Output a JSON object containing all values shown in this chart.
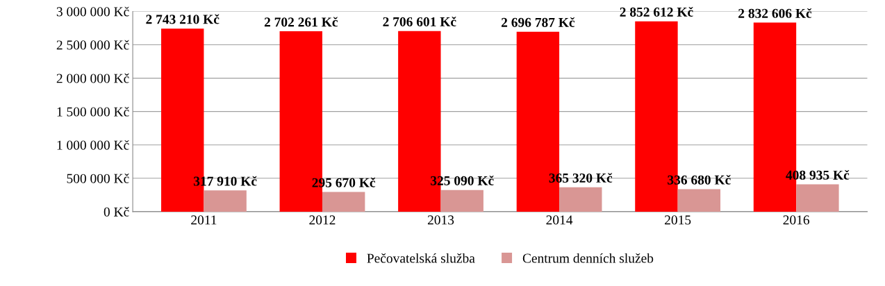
{
  "chart_data": {
    "type": "bar",
    "categories": [
      "2011",
      "2012",
      "2013",
      "2014",
      "2015",
      "2016"
    ],
    "series": [
      {
        "name": "Pečovatelská služba",
        "color": "#ff0000",
        "values": [
          2743210,
          2702261,
          2706601,
          2696787,
          2852612,
          2832606
        ],
        "value_labels": [
          "2 743 210 Kč",
          "2 702 261 Kč",
          "2 706 601 Kč",
          "2 696 787 Kč",
          "2 852 612 Kč",
          "2 832 606 Kč"
        ]
      },
      {
        "name": "Centrum denních služeb",
        "color": "#d99694",
        "values": [
          317910,
          295670,
          325090,
          365320,
          336680,
          408935
        ],
        "value_labels": [
          "317 910 Kč",
          "295 670 Kč",
          "325 090 Kč",
          "365 320 Kč",
          "336 680 Kč",
          "408 935 Kč"
        ]
      }
    ],
    "ylim": [
      0,
      3000000
    ],
    "yticks": [
      {
        "value": 0,
        "label": "0 Kč"
      },
      {
        "value": 500000,
        "label": "500 000 Kč"
      },
      {
        "value": 1000000,
        "label": "1 000 000 Kč"
      },
      {
        "value": 1500000,
        "label": "1 500 000 Kč"
      },
      {
        "value": 2000000,
        "label": "2 000 000 Kč"
      },
      {
        "value": 2500000,
        "label": "2 500 000 Kč"
      },
      {
        "value": 3000000,
        "label": "3 000 000 Kč"
      }
    ],
    "grid": "y",
    "legend": "bottom"
  }
}
